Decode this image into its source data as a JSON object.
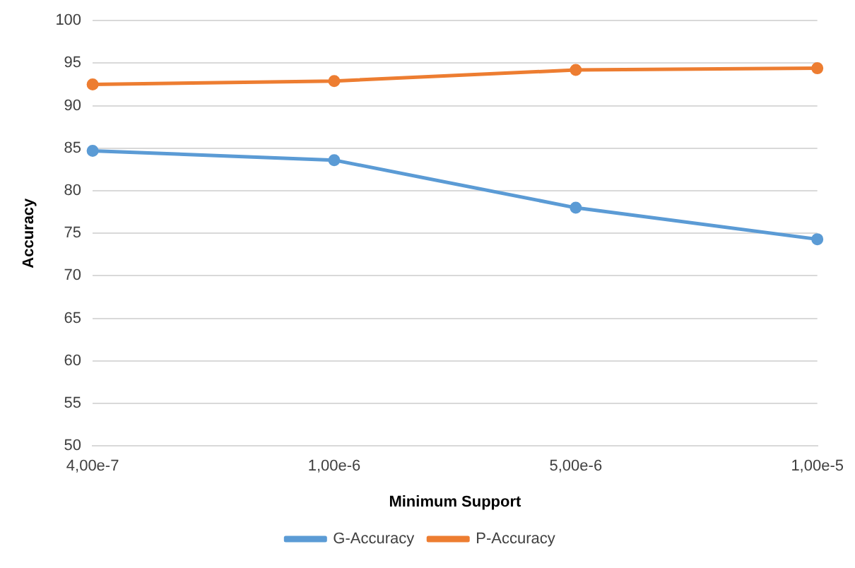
{
  "chart_data": {
    "type": "line",
    "xlabel": "Minimum Support",
    "ylabel": "Accuracy",
    "categories": [
      "4,00e-7",
      "1,00e-6",
      "5,00e-6",
      "1,00e-5"
    ],
    "series": [
      {
        "name": "G-Accuracy",
        "color": "#5b9bd5",
        "values": [
          84.7,
          83.6,
          78.0,
          74.3
        ]
      },
      {
        "name": "P-Accuracy",
        "color": "#ed7d31",
        "values": [
          92.5,
          92.9,
          94.2,
          94.4
        ]
      }
    ],
    "ylim": [
      50,
      100
    ],
    "yticks": [
      50,
      55,
      60,
      65,
      70,
      75,
      80,
      85,
      90,
      95,
      100
    ],
    "grid": "y",
    "legend": "bottom",
    "marker": "circle",
    "line_style": "solid"
  }
}
